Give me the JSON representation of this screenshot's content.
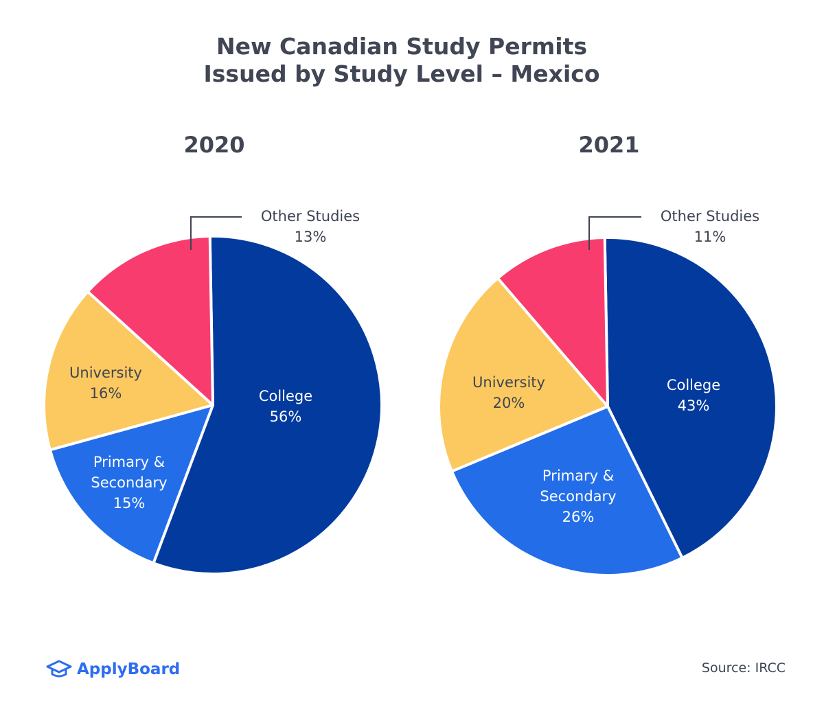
{
  "title": {
    "line1": "New Canadian Study Permits",
    "line2": "Issued by Study Level – Mexico"
  },
  "colors": {
    "College": "#033a9e",
    "Primary & Secondary": "#236ee8",
    "University": "#fbc95f",
    "Other Studies": "#f83c6e",
    "text_dark": "#3d4454",
    "text_light": "#ffffff"
  },
  "chart_data": [
    {
      "type": "pie",
      "title": "2020",
      "slices": [
        {
          "label_lines": [
            "College"
          ],
          "value": 56,
          "value_label": "56%",
          "color_key": "College"
        },
        {
          "label_lines": [
            "Primary &",
            "Secondary"
          ],
          "value": 15,
          "value_label": "15%",
          "color_key": "Primary & Secondary"
        },
        {
          "label_lines": [
            "University"
          ],
          "value": 16,
          "value_label": "16%",
          "color_key": "University"
        },
        {
          "label_lines": [
            "Other Studies"
          ],
          "value": 13,
          "value_label": "13%",
          "color_key": "Other Studies"
        }
      ]
    },
    {
      "type": "pie",
      "title": "2021",
      "slices": [
        {
          "label_lines": [
            "College"
          ],
          "value": 43,
          "value_label": "43%",
          "color_key": "College"
        },
        {
          "label_lines": [
            "Primary &",
            "Secondary"
          ],
          "value": 26,
          "value_label": "26%",
          "color_key": "Primary & Secondary"
        },
        {
          "label_lines": [
            "University"
          ],
          "value": 20,
          "value_label": "20%",
          "color_key": "University"
        },
        {
          "label_lines": [
            "Other Studies"
          ],
          "value": 11,
          "value_label": "11%",
          "color_key": "Other Studies"
        }
      ]
    }
  ],
  "footer": {
    "brand": "ApplyBoard",
    "brand_icon": "graduation-cap-icon",
    "source": "Source: IRCC"
  }
}
